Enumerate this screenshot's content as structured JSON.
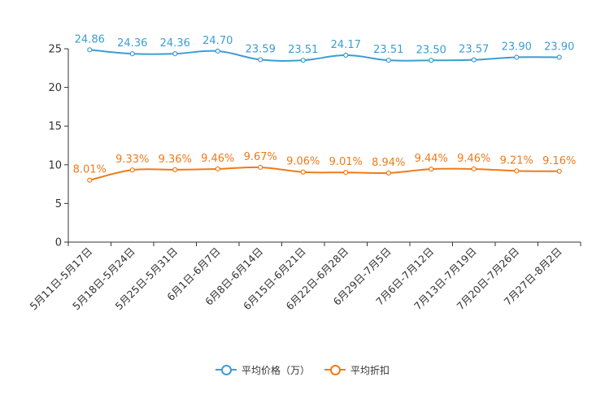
{
  "chart_data": {
    "type": "line",
    "title": "",
    "xlabel": "",
    "ylabel": "",
    "ylim": [
      0,
      25
    ],
    "yticks": [
      0,
      5,
      10,
      15,
      20,
      25
    ],
    "categories": [
      "5月11日-5月17日",
      "5月18日-5月24日",
      "5月25日-5月31日",
      "6月1日-6月7日",
      "6月8日-6月14日",
      "6月15日-6月21日",
      "6月22日-6月28日",
      "6月29日-7月5日",
      "7月6日-7月12日",
      "7月13日-7月19日",
      "7月20日-7月26日",
      "7月27日-8月2日"
    ],
    "series": [
      {
        "name": "平均价格（万）",
        "color": "#3d9dd1",
        "values": [
          24.86,
          24.36,
          24.36,
          24.7,
          23.59,
          23.51,
          24.17,
          23.51,
          23.5,
          23.57,
          23.9,
          23.9
        ],
        "labels": [
          "24.86",
          "24.36",
          "24.36",
          "24.70",
          "23.59",
          "23.51",
          "24.17",
          "23.51",
          "23.50",
          "23.57",
          "23.90",
          "23.90"
        ]
      },
      {
        "name": "平均折扣",
        "color": "#f07a1a",
        "values": [
          8.01,
          9.33,
          9.36,
          9.46,
          9.67,
          9.06,
          9.01,
          8.94,
          9.44,
          9.46,
          9.21,
          9.16
        ],
        "labels": [
          "8.01%",
          "9.33%",
          "9.36%",
          "9.46%",
          "9.67%",
          "9.06%",
          "9.01%",
          "8.94%",
          "9.44%",
          "9.46%",
          "9.21%",
          "9.16%"
        ]
      }
    ],
    "legend_position": "bottom-center",
    "grid": false
  }
}
